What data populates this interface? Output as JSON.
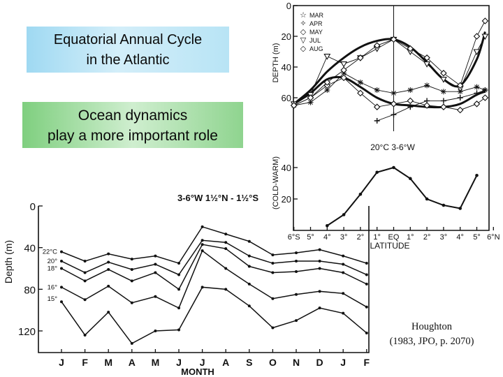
{
  "slide": {
    "title_lines": [
      "Equatorial Annual Cycle",
      "in the Atlantic"
    ],
    "subtitle_lines": [
      "Ocean dynamics",
      "play a more important role"
    ],
    "citation_lines": [
      "Houghton",
      "(1983, JPO, p. 2070)"
    ]
  },
  "chart_data": [
    {
      "type": "line",
      "title": "3-6°W  1½°N - 1½°S",
      "xlabel": "MONTH",
      "ylabel": "Depth (m)",
      "categories": [
        "J",
        "F",
        "M",
        "A",
        "M",
        "J",
        "J",
        "A",
        "S",
        "O",
        "N",
        "D",
        "J",
        "F"
      ],
      "ylim": [
        0,
        130
      ],
      "yticks": [
        0,
        40,
        80,
        120
      ],
      "y_inverted": true,
      "series": [
        {
          "name": "22°C",
          "values": [
            44,
            53,
            46,
            51,
            48,
            55,
            20,
            27,
            34,
            47,
            45,
            42,
            48,
            55
          ]
        },
        {
          "name": "20°",
          "values": [
            53,
            64,
            54,
            61,
            56,
            66,
            33,
            35,
            48,
            55,
            53,
            53,
            56,
            66
          ]
        },
        {
          "name": "18°",
          "values": [
            60,
            72,
            61,
            72,
            64,
            80,
            37,
            41,
            58,
            64,
            63,
            60,
            64,
            75
          ]
        },
        {
          "name": "16°",
          "values": [
            78,
            90,
            77,
            93,
            87,
            98,
            43,
            60,
            75,
            89,
            85,
            82,
            84,
            97
          ]
        },
        {
          "name": "15°",
          "values": [
            92,
            124,
            102,
            132,
            120,
            119,
            78,
            80,
            96,
            117,
            110,
            98,
            103,
            122
          ]
        }
      ]
    },
    {
      "type": "line",
      "title": "",
      "xlabel": "",
      "ylabel": "DEPTH (m)",
      "ylim": [
        0,
        75
      ],
      "yticks": [
        0,
        20,
        40,
        60
      ],
      "y_inverted": true,
      "legend": [
        "MAR",
        "APR",
        "MAY",
        "JUL",
        "AUG"
      ],
      "legend_markers": [
        "☆",
        "✧",
        "◇",
        "▽",
        "◇"
      ],
      "series": [
        {
          "name": "MAR",
          "x": [
            -6,
            -5,
            -4,
            -3,
            -2,
            -1,
            0,
            1,
            2,
            3,
            4,
            5,
            5.5
          ],
          "values": [
            65,
            63,
            55,
            44,
            50,
            55,
            57,
            55,
            52,
            56,
            56,
            53,
            55
          ]
        },
        {
          "name": "APR",
          "x": [
            -1,
            0,
            1,
            2,
            3,
            4,
            5,
            5.5
          ],
          "values": [
            75,
            71,
            66,
            62,
            62,
            60,
            57,
            55
          ]
        },
        {
          "name": "MAY",
          "x": [
            -6,
            -5,
            -4,
            -3,
            -2,
            -1,
            0,
            1,
            2,
            3,
            4,
            5,
            5.5
          ],
          "values": [
            65,
            60,
            52,
            47,
            57,
            66,
            64,
            62,
            65,
            66,
            68,
            64,
            60
          ]
        },
        {
          "name": "JUL",
          "x": [
            -6,
            -5,
            -4,
            -3,
            -2,
            -1,
            0,
            1,
            2,
            3,
            4,
            5,
            5.5
          ],
          "values": [
            64,
            58,
            33,
            38,
            34,
            28,
            22,
            30,
            38,
            48,
            54,
            30,
            20
          ]
        },
        {
          "name": "AUG",
          "x": [
            -6,
            -5,
            -4,
            -3,
            -2,
            -1,
            0,
            1,
            2,
            3,
            4,
            5,
            5.5
          ],
          "values": [
            65,
            60,
            50,
            42,
            34,
            26,
            22,
            28,
            34,
            44,
            52,
            20,
            10
          ]
        }
      ],
      "smooth_curves": [
        {
          "x": [
            -6,
            -5,
            -4,
            -3,
            -2,
            -1,
            0,
            1,
            2,
            3,
            4,
            5,
            5.5
          ],
          "values": [
            64,
            55,
            43,
            34,
            27,
            23,
            22,
            27,
            37,
            48,
            52,
            35,
            17
          ]
        },
        {
          "x": [
            -6,
            -5,
            -4,
            -3,
            -2,
            -1,
            0,
            1,
            2,
            3,
            4,
            5,
            5.5
          ],
          "values": [
            64,
            57,
            48,
            47,
            53,
            60,
            64,
            65,
            66,
            66,
            64,
            58,
            56
          ]
        }
      ]
    },
    {
      "type": "line",
      "title": "20°C   3-6°W",
      "xlabel": "LATITUDE",
      "ylabel": "(COLD-WARM)",
      "ylim": [
        0,
        50
      ],
      "yticks": [
        20,
        40
      ],
      "xticks": [
        "6°S",
        "5°",
        "4°",
        "3°",
        "2°",
        "1°",
        "EQ",
        "1°",
        "2°",
        "3°",
        "4°",
        "5°",
        "6°N"
      ],
      "x": [
        -4,
        -3,
        -2,
        -1,
        0,
        1,
        2,
        3,
        4,
        5
      ],
      "values": [
        3,
        10,
        23,
        37,
        40,
        33,
        20,
        16,
        14,
        35
      ]
    }
  ]
}
